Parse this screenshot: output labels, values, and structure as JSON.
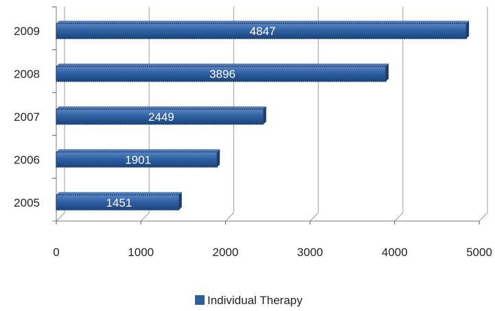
{
  "chart_data": {
    "type": "bar",
    "orientation": "horizontal",
    "categories": [
      "2005",
      "2006",
      "2007",
      "2008",
      "2009"
    ],
    "series": [
      {
        "name": "Individual Therapy",
        "values": [
          1451,
          1901,
          2449,
          3896,
          4847
        ]
      }
    ],
    "data_labels": [
      "1451",
      "1901",
      "2449",
      "3896",
      "4847"
    ],
    "x_ticks": [
      "0",
      "1000",
      "2000",
      "3000",
      "4000",
      "5000"
    ],
    "xlim": [
      0,
      5000
    ],
    "grid": "vertical",
    "legend_position": "bottom",
    "colors": {
      "bar": "#2e5e9e",
      "bar_edge": "#1b3d6d",
      "grid": "#9a9a9a"
    }
  }
}
